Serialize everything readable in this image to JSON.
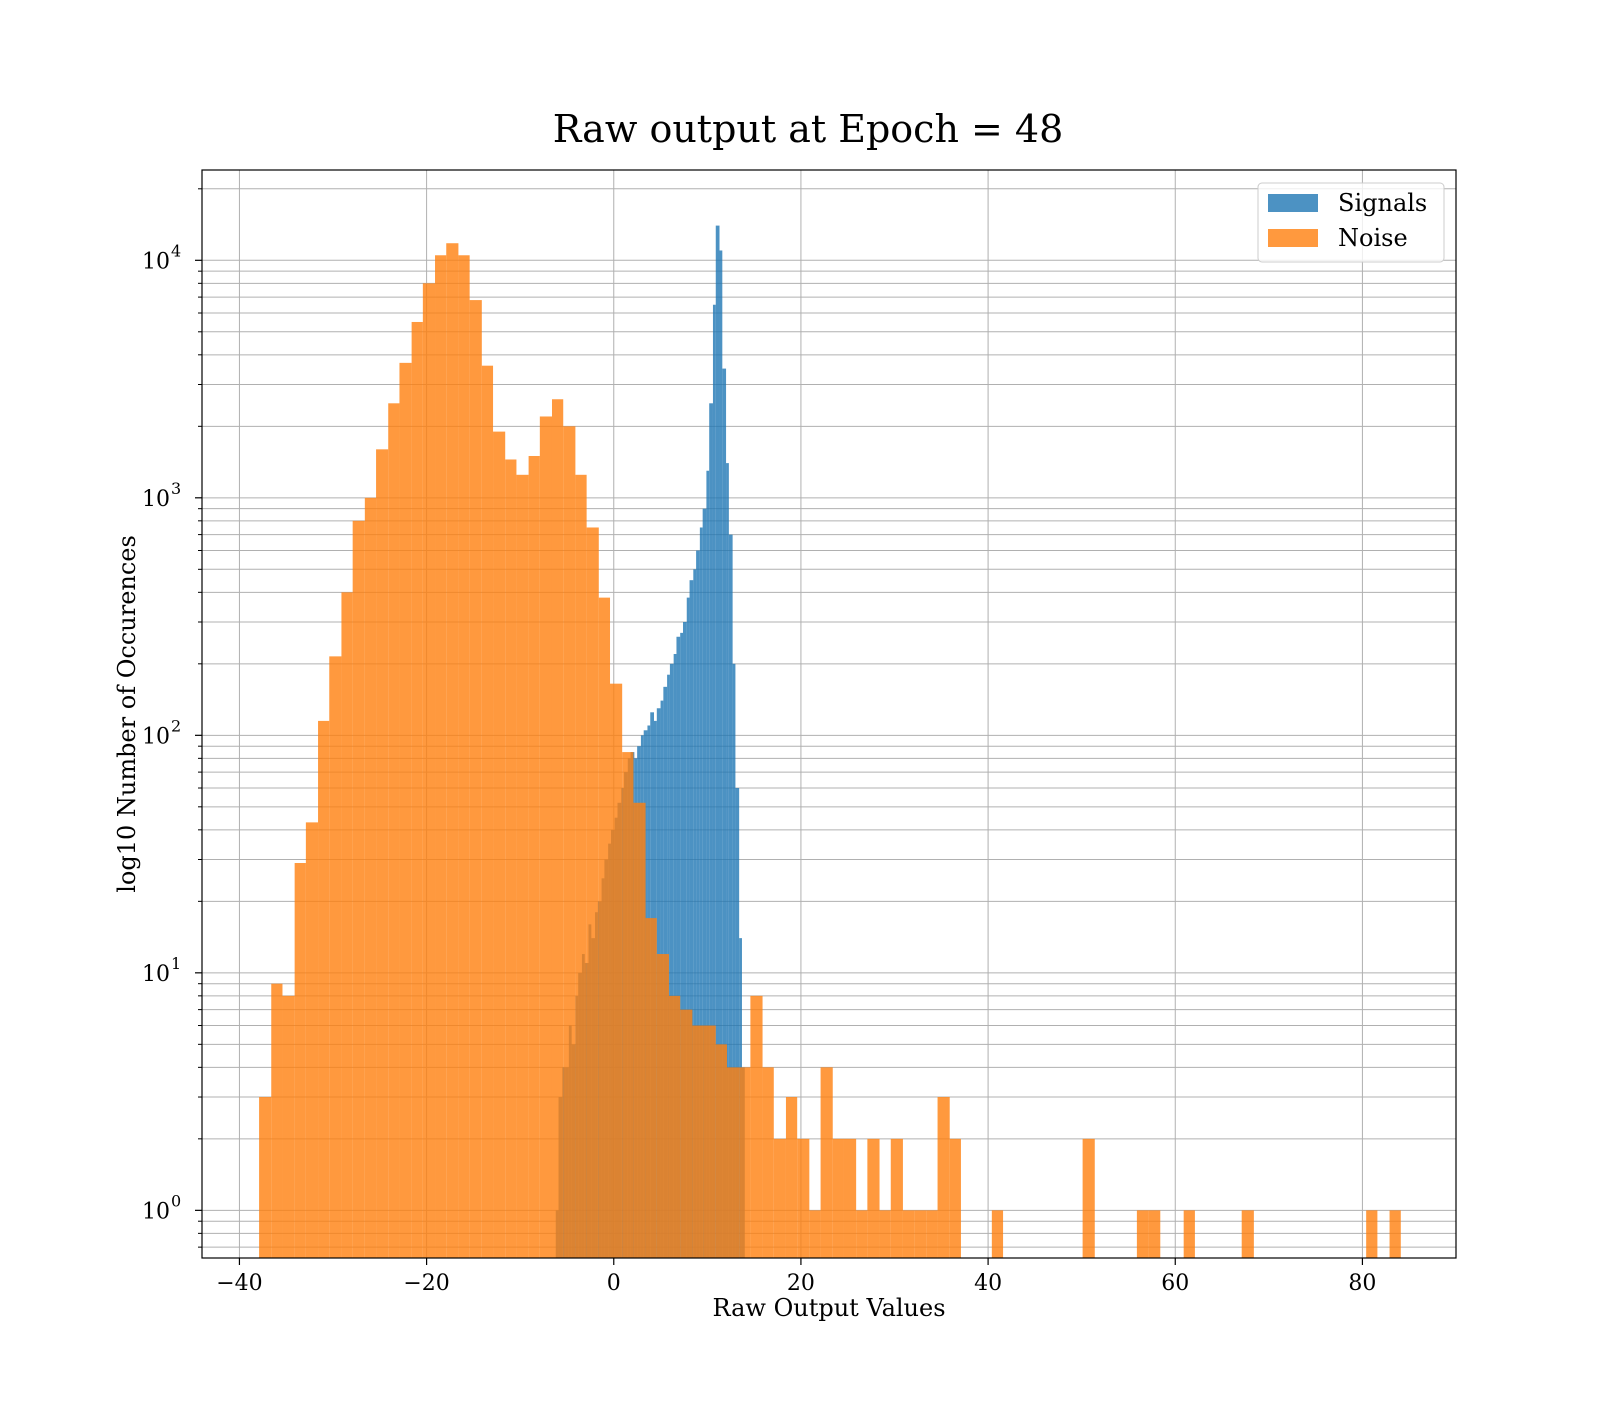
{
  "chart_data": {
    "type": "histogram",
    "title": "Raw output at Epoch = 48",
    "xlabel": "Raw Output Values",
    "ylabel": "log10 Number of Occurences",
    "xlim": [
      -44,
      90
    ],
    "ylim": [
      0.63,
      24000
    ],
    "yscale": "log",
    "grid": true,
    "legend_position": "top-right",
    "xticks": [
      -40,
      -20,
      0,
      20,
      40,
      60,
      80
    ],
    "xtick_labels": [
      "−40",
      "−20",
      "0",
      "20",
      "40",
      "60",
      "80"
    ],
    "yticks": [
      {
        "value": 1,
        "base": "10",
        "exp": "0"
      },
      {
        "value": 10,
        "base": "10",
        "exp": "1"
      },
      {
        "value": 100,
        "base": "10",
        "exp": "2"
      },
      {
        "value": 1000,
        "base": "10",
        "exp": "3"
      },
      {
        "value": 10000,
        "base": "10",
        "exp": "4"
      }
    ],
    "series": [
      {
        "name": "Signals",
        "color": "#1f77b4",
        "bins": [
          [
            -6.2,
            -5.9,
            1
          ],
          [
            -5.9,
            -5.5,
            3
          ],
          [
            -5.5,
            -5.2,
            4
          ],
          [
            -5.2,
            -4.8,
            4
          ],
          [
            -4.8,
            -4.5,
            6
          ],
          [
            -4.5,
            -4.1,
            5
          ],
          [
            -4.1,
            -3.8,
            8
          ],
          [
            -3.8,
            -3.4,
            10
          ],
          [
            -3.4,
            -3.1,
            12
          ],
          [
            -3.1,
            -2.7,
            11
          ],
          [
            -2.7,
            -2.4,
            16
          ],
          [
            -2.4,
            -2.0,
            14
          ],
          [
            -2.0,
            -1.7,
            18
          ],
          [
            -1.7,
            -1.3,
            20
          ],
          [
            -1.3,
            -1.0,
            25
          ],
          [
            -1.0,
            -0.6,
            30
          ],
          [
            -0.6,
            -0.3,
            35
          ],
          [
            -0.3,
            0.1,
            40
          ],
          [
            0.1,
            0.4,
            45
          ],
          [
            0.4,
            0.8,
            52
          ],
          [
            0.8,
            1.1,
            60
          ],
          [
            1.1,
            1.5,
            70
          ],
          [
            1.5,
            1.8,
            80
          ],
          [
            1.8,
            2.2,
            85
          ],
          [
            2.2,
            2.5,
            80
          ],
          [
            2.5,
            2.9,
            90
          ],
          [
            2.9,
            3.2,
            100
          ],
          [
            3.2,
            3.6,
            105
          ],
          [
            3.6,
            3.9,
            110
          ],
          [
            3.9,
            4.3,
            125
          ],
          [
            4.3,
            4.6,
            115
          ],
          [
            4.6,
            5.0,
            130
          ],
          [
            5.0,
            5.3,
            140
          ],
          [
            5.3,
            5.7,
            160
          ],
          [
            5.7,
            6.0,
            180
          ],
          [
            6.0,
            6.4,
            200
          ],
          [
            6.4,
            6.7,
            220
          ],
          [
            6.7,
            7.1,
            260
          ],
          [
            7.1,
            7.4,
            270
          ],
          [
            7.4,
            7.8,
            300
          ],
          [
            7.8,
            8.1,
            380
          ],
          [
            8.1,
            8.5,
            450
          ],
          [
            8.5,
            8.8,
            500
          ],
          [
            8.8,
            9.2,
            600
          ],
          [
            9.2,
            9.5,
            750
          ],
          [
            9.5,
            9.9,
            900
          ],
          [
            9.9,
            10.2,
            1300
          ],
          [
            10.2,
            10.6,
            2500
          ],
          [
            10.6,
            10.9,
            6500
          ],
          [
            10.9,
            11.3,
            14000
          ],
          [
            11.3,
            11.6,
            11000
          ],
          [
            11.6,
            12.0,
            3500
          ],
          [
            12.0,
            12.3,
            1400
          ],
          [
            12.3,
            12.7,
            700
          ],
          [
            12.7,
            13.0,
            200
          ],
          [
            13.0,
            13.4,
            60
          ],
          [
            13.4,
            13.7,
            14
          ],
          [
            13.7,
            14.0,
            4
          ]
        ]
      },
      {
        "name": "Noise",
        "color": "#ff7f0e",
        "bins": [
          [
            -37.9,
            -36.6,
            3
          ],
          [
            -36.6,
            -35.4,
            9
          ],
          [
            -35.4,
            -34.1,
            8
          ],
          [
            -34.1,
            -32.9,
            29
          ],
          [
            -32.9,
            -31.6,
            43
          ],
          [
            -31.6,
            -30.4,
            115
          ],
          [
            -30.4,
            -29.1,
            215
          ],
          [
            -29.1,
            -27.9,
            400
          ],
          [
            -27.9,
            -26.6,
            800
          ],
          [
            -26.6,
            -25.4,
            1000
          ],
          [
            -25.4,
            -24.1,
            1600
          ],
          [
            -24.1,
            -22.9,
            2500
          ],
          [
            -22.9,
            -21.6,
            3700
          ],
          [
            -21.6,
            -20.4,
            5500
          ],
          [
            -20.4,
            -19.1,
            8000
          ],
          [
            -19.1,
            -17.9,
            10500
          ],
          [
            -17.9,
            -16.6,
            11800
          ],
          [
            -16.6,
            -15.4,
            10500
          ],
          [
            -15.4,
            -14.1,
            6800
          ],
          [
            -14.1,
            -12.9,
            3600
          ],
          [
            -12.9,
            -11.6,
            1900
          ],
          [
            -11.6,
            -10.4,
            1450
          ],
          [
            -10.4,
            -9.1,
            1250
          ],
          [
            -9.1,
            -7.9,
            1500
          ],
          [
            -7.9,
            -6.6,
            2200
          ],
          [
            -6.6,
            -5.4,
            2600
          ],
          [
            -5.4,
            -4.1,
            2000
          ],
          [
            -4.1,
            -2.9,
            1250
          ],
          [
            -2.9,
            -1.6,
            750
          ],
          [
            -1.6,
            -0.4,
            380
          ],
          [
            -0.4,
            0.9,
            165
          ],
          [
            0.9,
            2.1,
            85
          ],
          [
            2.1,
            3.4,
            52
          ],
          [
            3.4,
            4.6,
            17
          ],
          [
            4.6,
            5.9,
            12
          ],
          [
            5.9,
            7.1,
            8
          ],
          [
            7.1,
            8.4,
            7
          ],
          [
            8.4,
            9.6,
            6
          ],
          [
            9.6,
            10.9,
            6
          ],
          [
            10.9,
            12.1,
            5
          ],
          [
            12.1,
            13.4,
            4
          ],
          [
            13.4,
            14.6,
            4
          ],
          [
            14.6,
            15.9,
            8
          ],
          [
            15.9,
            17.1,
            4
          ],
          [
            17.1,
            18.4,
            2
          ],
          [
            18.4,
            19.6,
            3
          ],
          [
            19.6,
            20.9,
            2
          ],
          [
            20.9,
            22.1,
            1
          ],
          [
            22.1,
            23.4,
            4
          ],
          [
            23.4,
            24.6,
            2
          ],
          [
            24.6,
            25.9,
            2
          ],
          [
            25.9,
            27.1,
            1
          ],
          [
            27.1,
            28.4,
            2
          ],
          [
            28.4,
            29.6,
            1
          ],
          [
            29.6,
            30.9,
            2
          ],
          [
            30.9,
            32.1,
            1
          ],
          [
            32.1,
            33.4,
            1
          ],
          [
            33.4,
            34.6,
            1
          ],
          [
            34.6,
            35.9,
            3
          ],
          [
            35.9,
            37.1,
            2
          ],
          [
            40.4,
            41.6,
            1
          ],
          [
            50.1,
            51.4,
            2
          ],
          [
            55.9,
            57.1,
            1
          ],
          [
            57.1,
            58.4,
            1
          ],
          [
            60.9,
            62.1,
            1
          ],
          [
            67.1,
            68.4,
            1
          ],
          [
            80.4,
            81.6,
            1
          ],
          [
            82.9,
            84.1,
            1
          ]
        ]
      }
    ]
  }
}
